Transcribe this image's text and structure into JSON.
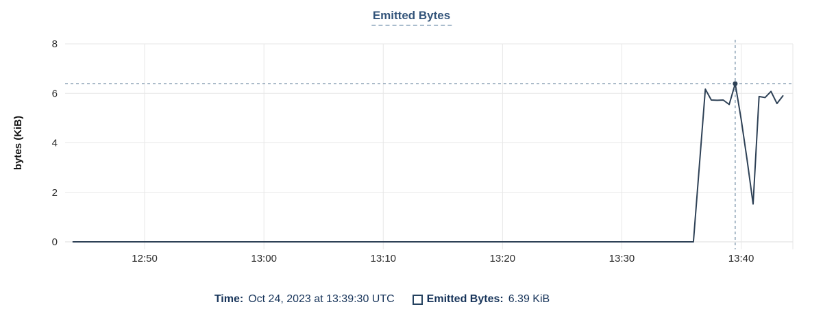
{
  "chart_data": {
    "type": "line",
    "title": "Emitted Bytes",
    "xlabel": "",
    "ylabel": "bytes (KiB)",
    "x_domain": [
      "12:43:20",
      "13:44:20"
    ],
    "ylim": [
      0,
      8
    ],
    "y_ticks": [
      0,
      2,
      4,
      6,
      8
    ],
    "x_ticks": [
      "12:50",
      "13:00",
      "13:10",
      "13:20",
      "13:30",
      "13:40"
    ],
    "grid": true,
    "legend_position": "bottom",
    "series": [
      {
        "name": "Emitted Bytes",
        "color": "#2e4156",
        "unit": "KiB",
        "points": [
          [
            "12:44:00",
            0
          ],
          [
            "13:36:00",
            0
          ],
          [
            "13:37:00",
            6.17
          ],
          [
            "13:37:30",
            5.73
          ],
          [
            "13:38:00",
            5.72
          ],
          [
            "13:38:30",
            5.73
          ],
          [
            "13:39:00",
            5.55
          ],
          [
            "13:39:30",
            6.39
          ],
          [
            "13:40:00",
            4.95
          ],
          [
            "13:40:30",
            3.3
          ],
          [
            "13:41:00",
            1.53
          ],
          [
            "13:41:30",
            5.87
          ],
          [
            "13:42:00",
            5.83
          ],
          [
            "13:42:30",
            6.08
          ],
          [
            "13:43:00",
            5.59
          ],
          [
            "13:43:30",
            5.9
          ]
        ]
      }
    ],
    "annotations": {
      "hline_value": 6.39,
      "crosshair_time": "13:39:30",
      "marker": {
        "time": "13:39:30",
        "value": 6.39
      }
    }
  },
  "tooltip": {
    "time_label": "Time:",
    "time_value": "Oct 24, 2023 at 13:39:30 UTC",
    "series_label": "Emitted Bytes:",
    "series_value": "6.39 KiB"
  },
  "colors": {
    "series_line": "#2e4156",
    "crosshair_dash": "#8ba0b5",
    "grid_line": "#e7e7e7",
    "axis_line": "#dcdcdc",
    "tick_text": "#2a2a2a",
    "axis_label_text": "#111111",
    "title_text": "#33547a",
    "title_underline": "#a9bccd",
    "legend_text": "#17345a",
    "swatch_border": "#24415f"
  }
}
